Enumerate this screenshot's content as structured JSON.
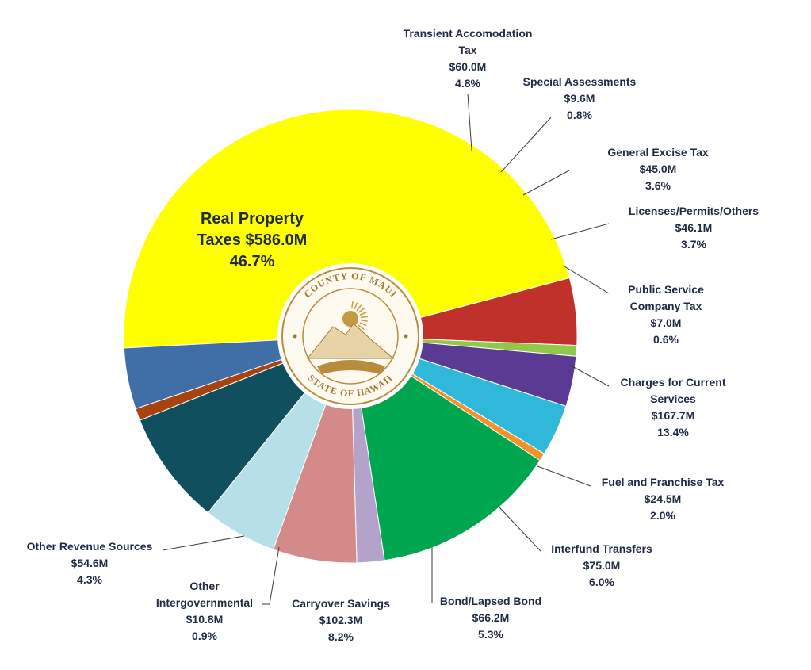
{
  "chart_data": {
    "type": "pie",
    "unit": "M",
    "slices": [
      {
        "label": "Real Property Taxes",
        "value_text": "$586.0M",
        "percent_text": "46.7%",
        "value": 586.0,
        "percent": 46.7,
        "color": "#ffff00"
      },
      {
        "label": "Transient Accomodation Tax",
        "value_text": "$60.0M",
        "percent_text": "4.8%",
        "value": 60.0,
        "percent": 4.8,
        "color": "#c0312b"
      },
      {
        "label": "Special Assessments",
        "value_text": "$9.6M",
        "percent_text": "0.8%",
        "value": 9.6,
        "percent": 0.8,
        "color": "#92c84a"
      },
      {
        "label": "General Excise Tax",
        "value_text": "$45.0M",
        "percent_text": "3.6%",
        "value": 45.0,
        "percent": 3.6,
        "color": "#5b3a93"
      },
      {
        "label": "Licenses/Permits/Others",
        "value_text": "$46.1M",
        "percent_text": "3.7%",
        "value": 46.1,
        "percent": 3.7,
        "color": "#2fb8da"
      },
      {
        "label": "Public Service Company Tax",
        "value_text": "$7.0M",
        "percent_text": "0.6%",
        "value": 7.0,
        "percent": 0.6,
        "color": "#f4922a"
      },
      {
        "label": "Charges for Current Services",
        "value_text": "$167.7M",
        "percent_text": "13.4%",
        "value": 167.7,
        "percent": 13.4,
        "color": "#00a64f"
      },
      {
        "label": "Fuel and Franchise Tax",
        "value_text": "$24.5M",
        "percent_text": "2.0%",
        "value": 24.5,
        "percent": 2.0,
        "color": "#b3a3ca"
      },
      {
        "label": "Interfund Transfers",
        "value_text": "$75.0M",
        "percent_text": "6.0%",
        "value": 75.0,
        "percent": 6.0,
        "color": "#d58a8a"
      },
      {
        "label": "Bond/Lapsed Bond",
        "value_text": "$66.2M",
        "percent_text": "5.3%",
        "value": 66.2,
        "percent": 5.3,
        "color": "#b7dfe8"
      },
      {
        "label": "Carryover Savings",
        "value_text": "$102.3M",
        "percent_text": "8.2%",
        "value": 102.3,
        "percent": 8.2,
        "color": "#0f4f5e"
      },
      {
        "label": "Other Intergovernmental",
        "value_text": "$10.8M",
        "percent_text": "0.9%",
        "value": 10.8,
        "percent": 0.9,
        "color": "#a8420e"
      },
      {
        "label": "Other Revenue Sources",
        "value_text": "$54.6M",
        "percent_text": "4.3%",
        "value": 54.6,
        "percent": 4.3,
        "color": "#3f6fa6"
      }
    ]
  },
  "seal": {
    "top_text": "COUNTY OF MAUI",
    "bottom_text": "STATE OF HAWAII"
  }
}
